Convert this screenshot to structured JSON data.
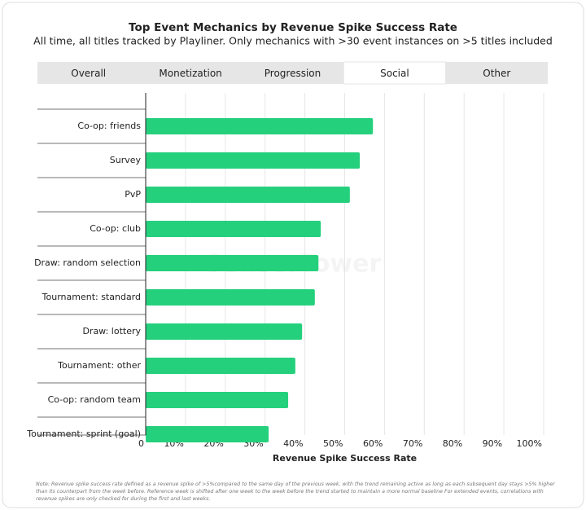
{
  "header": {
    "title": "Top Event Mechanics by Revenue Spike Success Rate",
    "subtitle": "All time, all titles tracked by Playliner. Only mechanics with >30 event instances on >5 titles included"
  },
  "tabs": {
    "items": [
      "Overall",
      "Monetization",
      "Progression",
      "Social",
      "Other"
    ],
    "active": "Social"
  },
  "chart_data": {
    "type": "hbar",
    "categories": [
      "Co-op: friends",
      "Survey",
      "PvP",
      "Co-op: club",
      "Draw: random selection",
      "Tournament: standard",
      "Draw: lottery",
      "Tournament: other",
      "Co-op: random team",
      "Tournament: sprint (goal)"
    ],
    "values": [
      57.1,
      53.8,
      51.3,
      44.0,
      43.4,
      42.5,
      39.3,
      37.6,
      35.8,
      30.9
    ],
    "color": "#25d07d",
    "xlim": [
      0,
      100
    ],
    "xticks": [
      0,
      {
        "value": 10,
        "label": "10%"
      },
      {
        "value": 20,
        "label": "20%"
      },
      {
        "value": 30,
        "label": "30%"
      },
      {
        "value": 40,
        "label": "40%"
      },
      {
        "value": 50,
        "label": "50%"
      },
      {
        "value": 60,
        "label": "60%"
      },
      {
        "value": 70,
        "label": "70%"
      },
      {
        "value": 80,
        "label": "80%"
      },
      {
        "value": 90,
        "label": "90%"
      },
      {
        "value": 100,
        "label": "100%"
      }
    ],
    "x_label": "Revenue Spike Success Rate",
    "grid": true
  },
  "watermark": "SensorTower",
  "footnote": "Note: Revenue spike success rate defined as a revenue spike of >5%compared to the same day of the previous week, with the trend remaining active as long as each subsequent day stays >5% higher than its counterpart from the week before. Reference week is shifted after one week to the week before the trend started to maintain a more normal baseline For extended events, correlations with revenue spikes are only checked for during the first and last weeks."
}
